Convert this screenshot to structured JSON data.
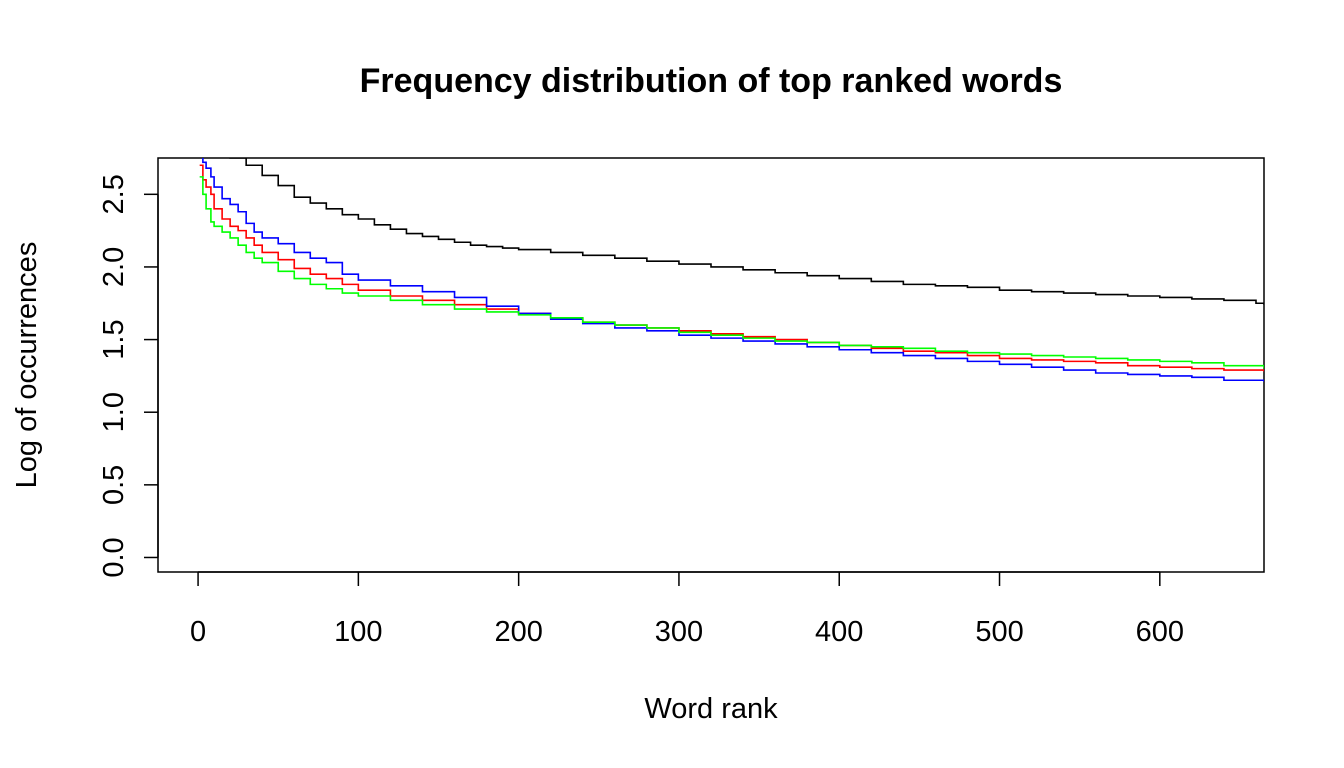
{
  "chart_data": {
    "type": "line",
    "title": "Frequency distribution of top ranked words",
    "xlabel": "Word rank",
    "ylabel": "Log of occurrences",
    "xlim": [
      -25,
      665
    ],
    "ylim": [
      -0.1,
      2.75
    ],
    "x_ticks": [
      0,
      100,
      200,
      300,
      400,
      500,
      600
    ],
    "y_ticks": [
      0.0,
      0.5,
      1.0,
      1.5,
      2.0,
      2.5
    ],
    "y_tick_labels": [
      "0.0",
      "0.5",
      "1.0",
      "1.5",
      "2.0",
      "2.5"
    ],
    "grid": false,
    "legend": "none",
    "series": [
      {
        "color": "#000000",
        "x": [
          1,
          20,
          30,
          40,
          50,
          60,
          70,
          80,
          90,
          100,
          110,
          120,
          130,
          140,
          150,
          160,
          170,
          180,
          190,
          200,
          220,
          240,
          260,
          280,
          300,
          320,
          340,
          360,
          380,
          400,
          420,
          440,
          460,
          480,
          500,
          520,
          540,
          560,
          580,
          600,
          620,
          640,
          660,
          665
        ],
        "y": [
          2.9,
          2.75,
          2.7,
          2.63,
          2.56,
          2.48,
          2.44,
          2.4,
          2.36,
          2.33,
          2.29,
          2.26,
          2.23,
          2.21,
          2.19,
          2.17,
          2.15,
          2.14,
          2.13,
          2.12,
          2.1,
          2.08,
          2.06,
          2.04,
          2.02,
          2.0,
          1.98,
          1.96,
          1.94,
          1.92,
          1.9,
          1.88,
          1.87,
          1.86,
          1.84,
          1.83,
          1.82,
          1.81,
          1.8,
          1.79,
          1.78,
          1.77,
          1.75,
          1.74
        ]
      },
      {
        "color": "#ff0000",
        "x": [
          1,
          3,
          5,
          8,
          10,
          15,
          20,
          25,
          30,
          35,
          40,
          50,
          60,
          70,
          80,
          90,
          100,
          120,
          140,
          160,
          180,
          200,
          220,
          240,
          260,
          280,
          300,
          320,
          340,
          360,
          380,
          400,
          420,
          440,
          460,
          480,
          500,
          520,
          540,
          560,
          580,
          600,
          620,
          640,
          665
        ],
        "y": [
          2.7,
          2.6,
          2.55,
          2.5,
          2.4,
          2.33,
          2.28,
          2.25,
          2.2,
          2.15,
          2.1,
          2.05,
          1.99,
          1.95,
          1.92,
          1.88,
          1.84,
          1.8,
          1.77,
          1.74,
          1.71,
          1.68,
          1.65,
          1.62,
          1.6,
          1.58,
          1.56,
          1.54,
          1.52,
          1.5,
          1.48,
          1.46,
          1.44,
          1.42,
          1.41,
          1.39,
          1.37,
          1.36,
          1.35,
          1.34,
          1.32,
          1.31,
          1.3,
          1.29,
          1.28
        ]
      },
      {
        "color": "#0000ff",
        "x": [
          1,
          3,
          5,
          8,
          10,
          15,
          20,
          25,
          30,
          35,
          40,
          50,
          60,
          70,
          80,
          90,
          100,
          120,
          140,
          160,
          180,
          200,
          220,
          240,
          260,
          280,
          300,
          320,
          340,
          360,
          380,
          400,
          420,
          440,
          460,
          480,
          500,
          520,
          540,
          560,
          580,
          600,
          620,
          640,
          665
        ],
        "y": [
          2.78,
          2.72,
          2.68,
          2.62,
          2.55,
          2.47,
          2.43,
          2.38,
          2.3,
          2.24,
          2.2,
          2.16,
          2.1,
          2.06,
          2.03,
          1.95,
          1.91,
          1.87,
          1.83,
          1.79,
          1.73,
          1.68,
          1.64,
          1.61,
          1.58,
          1.56,
          1.53,
          1.51,
          1.49,
          1.47,
          1.45,
          1.43,
          1.41,
          1.39,
          1.37,
          1.35,
          1.33,
          1.31,
          1.29,
          1.27,
          1.26,
          1.25,
          1.24,
          1.22,
          1.21
        ]
      },
      {
        "color": "#00ff00",
        "x": [
          1,
          3,
          5,
          8,
          10,
          15,
          20,
          25,
          30,
          35,
          40,
          50,
          60,
          70,
          80,
          90,
          100,
          120,
          140,
          160,
          180,
          200,
          220,
          240,
          260,
          280,
          300,
          320,
          340,
          360,
          380,
          400,
          420,
          440,
          460,
          480,
          500,
          520,
          540,
          560,
          580,
          600,
          620,
          640,
          665
        ],
        "y": [
          2.62,
          2.5,
          2.4,
          2.31,
          2.28,
          2.24,
          2.2,
          2.15,
          2.1,
          2.06,
          2.03,
          1.97,
          1.92,
          1.88,
          1.85,
          1.82,
          1.8,
          1.77,
          1.74,
          1.71,
          1.69,
          1.67,
          1.65,
          1.62,
          1.6,
          1.58,
          1.55,
          1.53,
          1.51,
          1.49,
          1.48,
          1.46,
          1.45,
          1.44,
          1.42,
          1.41,
          1.4,
          1.39,
          1.38,
          1.37,
          1.36,
          1.35,
          1.34,
          1.32,
          1.3
        ]
      }
    ]
  }
}
